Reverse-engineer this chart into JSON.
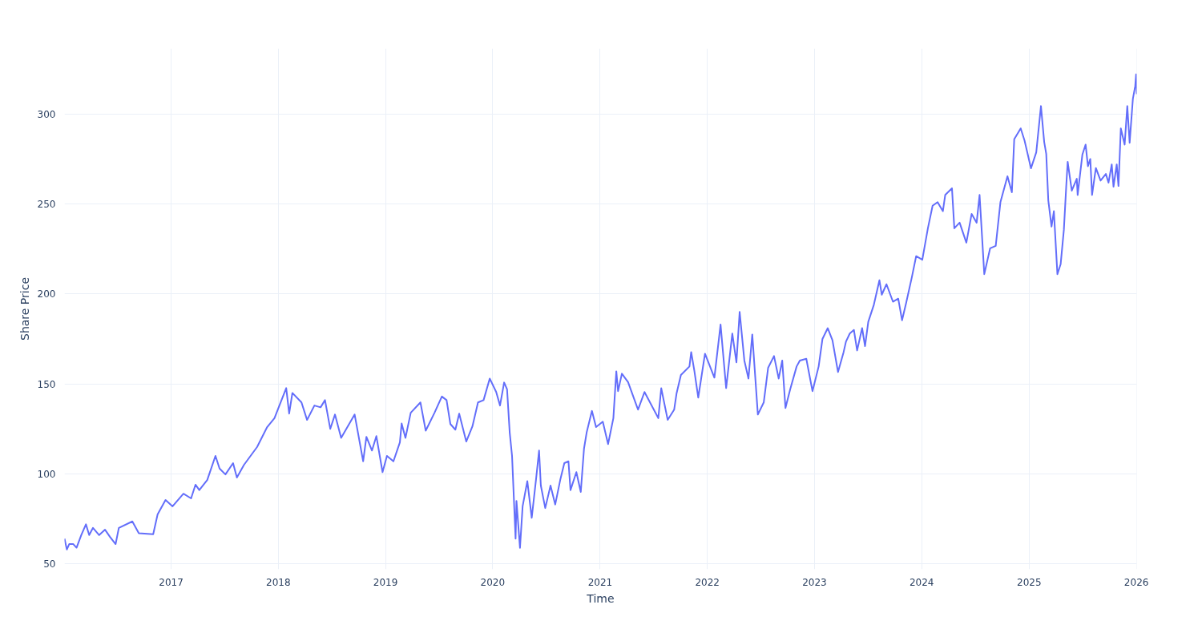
{
  "chart_data": {
    "type": "line",
    "xlabel": "Time",
    "ylabel": "Share Price",
    "x": [
      "2016-01-04",
      "2016-01-12",
      "2016-01-20",
      "2016-02-03",
      "2016-02-14",
      "2016-03-01",
      "2016-03-17",
      "2016-03-28",
      "2016-04-10",
      "2016-05-01",
      "2016-05-21",
      "2016-06-07",
      "2016-06-26",
      "2016-07-07",
      "2016-08-22",
      "2016-09-13",
      "2016-11-01",
      "2016-11-16",
      "2016-12-13",
      "2017-01-06",
      "2017-02-12",
      "2017-03-10",
      "2017-03-25",
      "2017-04-07",
      "2017-05-04",
      "2017-06-01",
      "2017-06-15",
      "2017-07-05",
      "2017-07-31",
      "2017-08-13",
      "2017-09-06",
      "2017-10-21",
      "2017-11-24",
      "2017-12-19",
      "2018-01-28",
      "2018-02-07",
      "2018-02-18",
      "2018-03-21",
      "2018-04-09",
      "2018-05-04",
      "2018-05-25",
      "2018-06-09",
      "2018-06-27",
      "2018-07-13",
      "2018-08-03",
      "2018-09-18",
      "2018-10-17",
      "2018-10-28",
      "2018-11-16",
      "2018-12-01",
      "2018-12-22",
      "2019-01-06",
      "2019-01-28",
      "2019-02-19",
      "2019-02-25",
      "2019-03-10",
      "2019-03-28",
      "2019-04-30",
      "2019-05-18",
      "2019-06-17",
      "2019-07-12",
      "2019-07-28",
      "2019-08-10",
      "2019-08-27",
      "2019-09-09",
      "2019-10-03",
      "2019-10-24",
      "2019-11-12",
      "2019-12-01",
      "2019-12-22",
      "2020-01-13",
      "2020-01-26",
      "2020-02-09",
      "2020-02-19",
      "2020-02-28",
      "2020-03-07",
      "2020-03-19",
      "2020-03-22",
      "2020-04-03",
      "2020-04-12",
      "2020-04-28",
      "2020-05-13",
      "2020-05-28",
      "2020-06-07",
      "2020-06-13",
      "2020-06-28",
      "2020-07-16",
      "2020-08-01",
      "2020-08-18",
      "2020-09-01",
      "2020-09-15",
      "2020-09-22",
      "2020-10-12",
      "2020-10-27",
      "2020-11-07",
      "2020-11-16",
      "2020-12-04",
      "2020-12-18",
      "2021-01-10",
      "2021-01-28",
      "2021-02-15",
      "2021-02-25",
      "2021-03-03",
      "2021-03-16",
      "2021-04-06",
      "2021-05-10",
      "2021-06-01",
      "2021-07-18",
      "2021-07-28",
      "2021-08-19",
      "2021-09-10",
      "2021-09-18",
      "2021-10-03",
      "2021-11-01",
      "2021-11-07",
      "2021-11-18",
      "2021-12-01",
      "2021-12-24",
      "2022-01-25",
      "2022-02-15",
      "2022-03-06",
      "2022-03-27",
      "2022-04-10",
      "2022-04-21",
      "2022-05-07",
      "2022-05-21",
      "2022-06-03",
      "2022-06-22",
      "2022-07-12",
      "2022-07-27",
      "2022-08-16",
      "2022-09-01",
      "2022-09-13",
      "2022-09-24",
      "2022-10-10",
      "2022-11-01",
      "2022-11-12",
      "2022-12-04",
      "2022-12-25",
      "2023-01-15",
      "2023-01-28",
      "2023-02-15",
      "2023-03-03",
      "2023-03-22",
      "2023-04-10",
      "2023-04-18",
      "2023-05-01",
      "2023-05-15",
      "2023-05-26",
      "2023-06-12",
      "2023-06-22",
      "2023-07-03",
      "2023-07-22",
      "2023-08-10",
      "2023-08-18",
      "2023-09-03",
      "2023-09-25",
      "2023-10-13",
      "2023-10-26",
      "2023-11-09",
      "2023-11-28",
      "2023-12-13",
      "2024-01-03",
      "2024-01-22",
      "2024-02-07",
      "2024-02-24",
      "2024-03-13",
      "2024-03-21",
      "2024-04-13",
      "2024-04-21",
      "2024-05-09",
      "2024-06-01",
      "2024-06-19",
      "2024-07-06",
      "2024-07-16",
      "2024-08-01",
      "2024-08-21",
      "2024-09-09",
      "2024-09-25",
      "2024-10-19",
      "2024-11-03",
      "2024-11-11",
      "2024-12-03",
      "2024-12-16",
      "2025-01-07",
      "2025-01-25",
      "2025-02-10",
      "2025-02-21",
      "2025-02-28",
      "2025-03-07",
      "2025-03-18",
      "2025-03-26",
      "2025-04-07",
      "2025-04-18",
      "2025-04-29",
      "2025-05-07",
      "2025-05-12",
      "2025-05-26",
      "2025-06-12",
      "2025-06-15",
      "2025-07-01",
      "2025-07-12",
      "2025-07-20",
      "2025-07-28",
      "2025-08-03",
      "2025-08-16",
      "2025-09-01",
      "2025-09-19",
      "2025-09-28",
      "2025-10-09",
      "2025-10-15",
      "2025-10-26",
      "2025-11-01",
      "2025-11-09",
      "2025-11-22",
      "2025-12-01",
      "2025-12-09",
      "2025-12-20",
      "2025-12-28",
      "2025-12-31",
      "2026-01-02"
    ],
    "series": [
      {
        "color": "#636efa",
        "values": [
          64,
          58,
          61,
          61,
          59,
          66,
          72,
          66,
          70,
          66,
          69,
          65,
          61,
          70,
          73.6,
          67,
          66.5,
          77.5,
          85.5,
          82,
          89,
          86.4,
          94,
          91,
          96.6,
          110,
          103,
          99.7,
          106,
          98,
          105,
          115,
          126,
          131,
          147.7,
          133.5,
          145,
          139.7,
          130,
          138,
          137,
          141,
          125,
          133,
          120,
          133,
          107,
          120.6,
          113,
          121,
          101,
          110,
          107,
          117.5,
          128,
          120,
          134,
          139.7,
          124,
          134,
          143,
          141,
          127.7,
          124.6,
          133.5,
          118,
          126.4,
          139.7,
          141,
          153,
          145.5,
          138,
          150.8,
          147,
          123,
          110,
          64,
          85,
          58.9,
          82,
          96,
          75.6,
          97.5,
          113,
          93.5,
          81,
          93.5,
          83,
          96.6,
          106,
          107,
          91,
          101,
          90,
          114,
          123,
          135,
          126,
          129,
          116.6,
          131,
          157,
          146,
          155.7,
          151,
          135.7,
          145.5,
          131,
          147.6,
          130,
          135.7,
          144.6,
          155,
          159.7,
          167.7,
          157,
          142.4,
          166.8,
          153.5,
          183,
          147.7,
          178,
          162,
          190,
          163,
          153,
          177.5,
          133,
          139.7,
          159,
          165.5,
          153,
          163,
          136.6,
          147,
          159.7,
          163,
          164,
          146,
          159.7,
          175,
          181,
          174.3,
          156.6,
          167.7,
          173.5,
          178,
          180,
          168.6,
          181,
          171,
          184.5,
          194,
          207.6,
          199.6,
          205.4,
          195.7,
          197.4,
          185.4,
          195,
          209,
          221,
          219,
          236.5,
          249,
          251,
          246,
          255,
          258.7,
          236.5,
          239.6,
          228.5,
          244.5,
          239.6,
          255,
          211,
          225.4,
          226.7,
          251,
          265.4,
          256.5,
          286,
          292,
          285.3,
          269.8,
          278.7,
          304.4,
          284.5,
          277.8,
          252,
          237.4,
          246,
          211,
          216.5,
          235.6,
          259.6,
          273.4,
          257.4,
          264,
          255,
          277.4,
          283,
          271,
          275,
          255,
          270,
          263,
          266.7,
          261.8,
          272,
          259.6,
          272,
          260,
          292,
          283,
          304.4,
          284,
          308.4,
          315.5,
          322,
          311
        ]
      }
    ],
    "xlim": [
      "2016-01-04",
      "2026-01-02"
    ],
    "ylim": [
      47,
      336.4
    ],
    "xticks": [
      "2017",
      "2018",
      "2019",
      "2020",
      "2021",
      "2022",
      "2023",
      "2024",
      "2025",
      "2026"
    ],
    "yticks": [
      50,
      100,
      150,
      200,
      250,
      300
    ],
    "grid": true
  }
}
